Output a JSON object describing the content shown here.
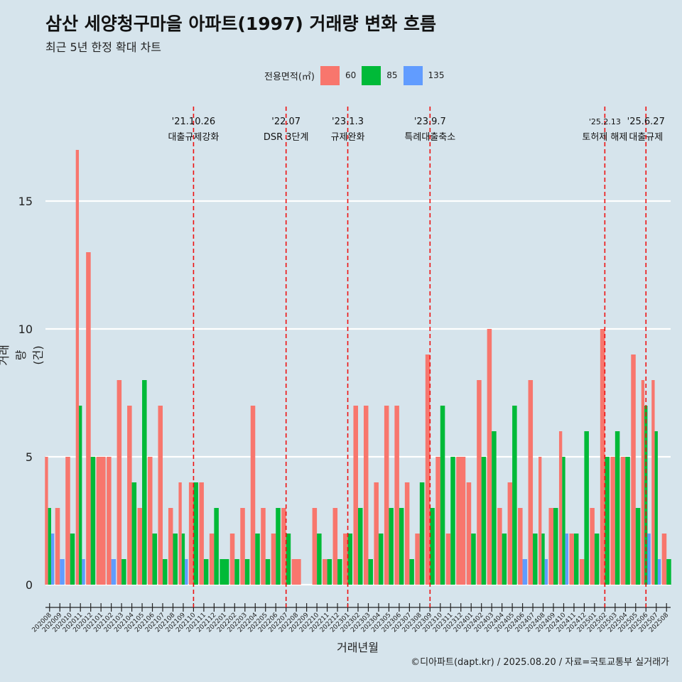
{
  "title": "삼산 세양청구마을 아파트(1997) 거래량 변화 흐름",
  "subtitle": "최근 5년 한정 확대 차트",
  "caption": "©디아파트(dapt.kr) / 2025.08.20 / 자료=국토교통부 실거래가",
  "legend": {
    "title": "전용면적(㎡)",
    "items": [
      {
        "label": "60",
        "color": "#f8766d"
      },
      {
        "label": "85",
        "color": "#00ba38"
      },
      {
        "label": "135",
        "color": "#619cff"
      }
    ]
  },
  "chart_data": {
    "type": "bar",
    "xlabel": "거래년월",
    "ylabel": "거래량(건)",
    "ylim": [
      0,
      17
    ],
    "yticks": [
      0,
      5,
      10,
      15
    ],
    "grid": true,
    "legend_position": "top",
    "categories": [
      "202008",
      "202009",
      "202010",
      "202011",
      "202012",
      "202101",
      "202102",
      "202103",
      "202104",
      "202105",
      "202106",
      "202107",
      "202108",
      "202109",
      "202110",
      "202111",
      "202112",
      "202201",
      "202202",
      "202203",
      "202204",
      "202205",
      "202206",
      "202207",
      "202208",
      "202209",
      "202210",
      "202211",
      "202212",
      "202301",
      "202302",
      "202303",
      "202304",
      "202305",
      "202306",
      "202307",
      "202308",
      "202309",
      "202310",
      "202311",
      "202312",
      "202401",
      "202402",
      "202403",
      "202404",
      "202405",
      "202406",
      "202407",
      "202408",
      "202409",
      "202410",
      "202411",
      "202412",
      "202501",
      "202502",
      "202503",
      "202504",
      "202505",
      "202506",
      "202507",
      "202508"
    ],
    "series": [
      {
        "name": "60",
        "color": "#f8766d",
        "values": [
          5,
          3,
          5,
          17,
          13,
          5,
          5,
          8,
          7,
          3,
          5,
          7,
          3,
          4,
          4,
          4,
          2,
          0,
          2,
          3,
          7,
          3,
          2,
          3,
          1,
          0,
          3,
          1,
          3,
          2,
          7,
          7,
          4,
          7,
          7,
          4,
          2,
          9,
          5,
          2,
          5,
          4,
          8,
          10,
          3,
          4,
          3,
          8,
          5,
          3,
          6,
          2,
          1,
          3,
          10,
          5,
          5,
          9,
          8,
          8,
          2
        ]
      },
      {
        "name": "85",
        "color": "#00ba38",
        "values": [
          3,
          0,
          2,
          7,
          5,
          0,
          0,
          1,
          4,
          8,
          2,
          1,
          2,
          2,
          4,
          1,
          3,
          1,
          1,
          1,
          2,
          1,
          3,
          2,
          0,
          0,
          2,
          1,
          1,
          2,
          3,
          1,
          2,
          3,
          3,
          1,
          4,
          3,
          7,
          5,
          0,
          2,
          5,
          6,
          2,
          7,
          0,
          2,
          2,
          3,
          5,
          2,
          6,
          2,
          5,
          6,
          5,
          3,
          7,
          6,
          1
        ]
      },
      {
        "name": "135",
        "color": "#619cff",
        "values": [
          2,
          1,
          0,
          1,
          0,
          0,
          1,
          0,
          0,
          0,
          0,
          0,
          0,
          1,
          0,
          0,
          0,
          0,
          0,
          0,
          0,
          0,
          0,
          0,
          0,
          0,
          0,
          0,
          0,
          0,
          0,
          0,
          0,
          0,
          0,
          0,
          0,
          0,
          0,
          0,
          0,
          0,
          0,
          0,
          0,
          0,
          1,
          0,
          1,
          0,
          2,
          0,
          0,
          0,
          0,
          0,
          0,
          0,
          2,
          1,
          0
        ]
      }
    ],
    "annotations": [
      {
        "category": "202110",
        "date": "'21.10.26",
        "label": "대출규제강화"
      },
      {
        "category": "202207",
        "date": "'22.07",
        "label": "DSR 3단계"
      },
      {
        "category": "202301",
        "date": "'23.1.3",
        "label": "규제완화"
      },
      {
        "category": "202309",
        "date": "'23.9.7",
        "label": "특례대출축소"
      },
      {
        "category": "202502",
        "date": "'25.2.13",
        "label": "토허제 해제"
      },
      {
        "category": "202506",
        "date": "'25.6.27",
        "label": "대출규제"
      }
    ]
  }
}
